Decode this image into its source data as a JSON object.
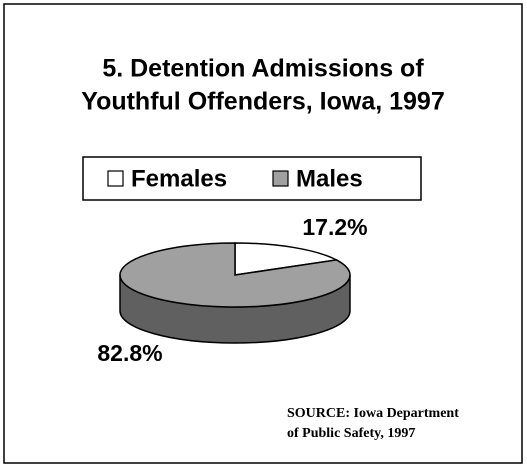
{
  "chart_data": {
    "type": "pie",
    "title": [
      "5. Detention Admissions of",
      "Youthful Offenders, Iowa, 1997"
    ],
    "categories": [
      "Females",
      "Males"
    ],
    "values": [
      17.2,
      82.8
    ],
    "value_labels": [
      "17.2%",
      "82.8%"
    ],
    "colors": [
      "#ffffff",
      "#a0a0a0"
    ],
    "annotations": [
      "SOURCE:  Iowa Department",
      "of Public Safety, 1997"
    ]
  }
}
